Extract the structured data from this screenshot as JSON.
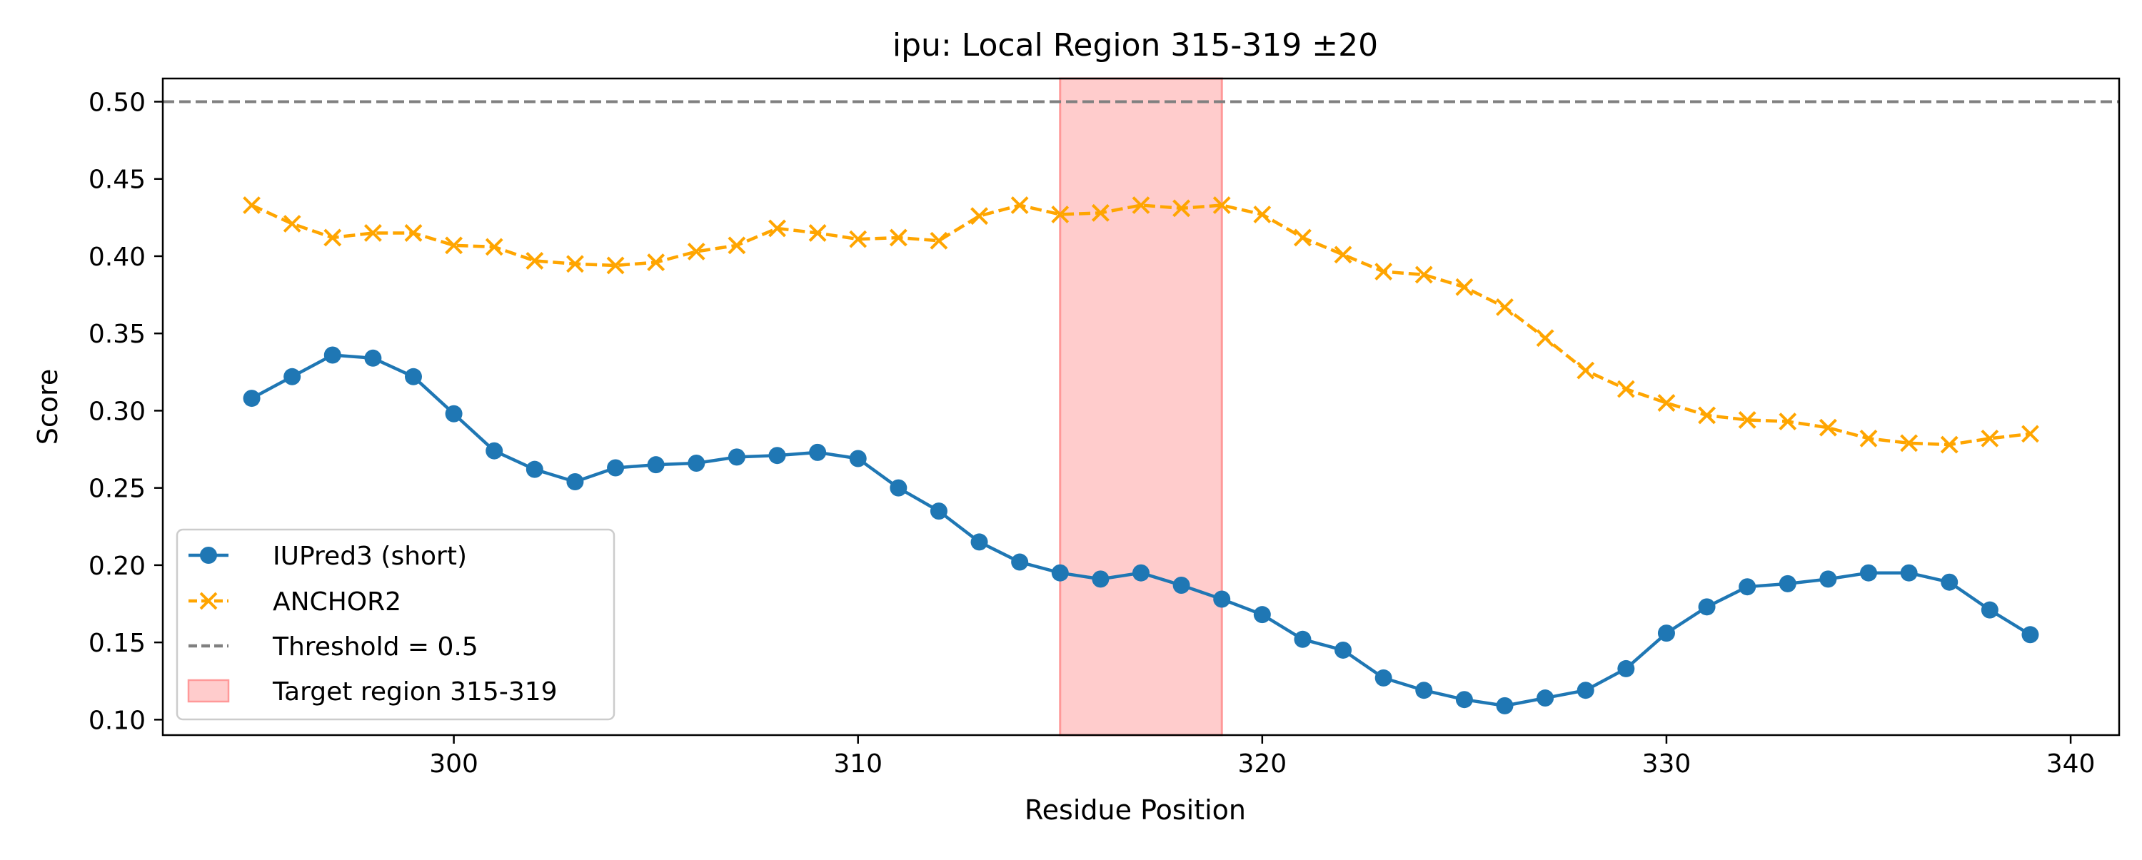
{
  "chart_data": {
    "type": "line",
    "title": "ipu: Local Region 315-319 ±20",
    "xlabel": "Residue Position",
    "ylabel": "Score",
    "xlim": [
      292.8,
      341.2
    ],
    "ylim": [
      0.09,
      0.515
    ],
    "xticks": [
      300,
      310,
      320,
      330,
      340
    ],
    "xtick_labels": [
      "300",
      "310",
      "320",
      "330",
      "340"
    ],
    "yticks": [
      0.1,
      0.15,
      0.2,
      0.25,
      0.3,
      0.35,
      0.4,
      0.45,
      0.5
    ],
    "ytick_labels": [
      "0.10",
      "0.15",
      "0.20",
      "0.25",
      "0.30",
      "0.35",
      "0.40",
      "0.45",
      "0.50"
    ],
    "grid": false,
    "legend_position": "lower-left",
    "x": [
      295,
      296,
      297,
      298,
      299,
      300,
      301,
      302,
      303,
      304,
      305,
      306,
      307,
      308,
      309,
      310,
      311,
      312,
      313,
      314,
      315,
      316,
      317,
      318,
      319,
      320,
      321,
      322,
      323,
      324,
      325,
      326,
      327,
      328,
      329,
      330,
      331,
      332,
      333,
      334,
      335,
      336,
      337,
      338,
      339
    ],
    "series": [
      {
        "name": "IUPred3 (short)",
        "color": "#1f77b4",
        "marker": "circle",
        "linestyle": "solid",
        "values": [
          0.308,
          0.322,
          0.336,
          0.334,
          0.322,
          0.298,
          0.274,
          0.262,
          0.254,
          0.263,
          0.265,
          0.266,
          0.27,
          0.271,
          0.273,
          0.269,
          0.25,
          0.235,
          0.215,
          0.202,
          0.195,
          0.191,
          0.195,
          0.187,
          0.178,
          0.168,
          0.152,
          0.145,
          0.127,
          0.119,
          0.113,
          0.109,
          0.114,
          0.119,
          0.133,
          0.156,
          0.173,
          0.186,
          0.188,
          0.191,
          0.195,
          0.195,
          0.189,
          0.171,
          0.155
        ]
      },
      {
        "name": "ANCHOR2",
        "color": "#ffa500",
        "marker": "x",
        "linestyle": "dashed",
        "values": [
          0.433,
          0.421,
          0.412,
          0.415,
          0.415,
          0.407,
          0.406,
          0.397,
          0.395,
          0.394,
          0.396,
          0.403,
          0.407,
          0.418,
          0.415,
          0.411,
          0.412,
          0.41,
          0.426,
          0.433,
          0.427,
          0.428,
          0.433,
          0.431,
          0.433,
          0.427,
          0.412,
          0.401,
          0.39,
          0.388,
          0.38,
          0.367,
          0.347,
          0.326,
          0.314,
          0.305,
          0.297,
          0.294,
          0.293,
          0.289,
          0.282,
          0.279,
          0.278,
          0.282,
          0.285
        ]
      }
    ],
    "threshold": {
      "label": "Threshold = 0.5",
      "value": 0.5,
      "color": "#808080"
    },
    "target_region": {
      "label": "Target region 315-319",
      "start": 315,
      "end": 319,
      "color": "#ffcccc",
      "edge_color": "#ff9999"
    }
  }
}
